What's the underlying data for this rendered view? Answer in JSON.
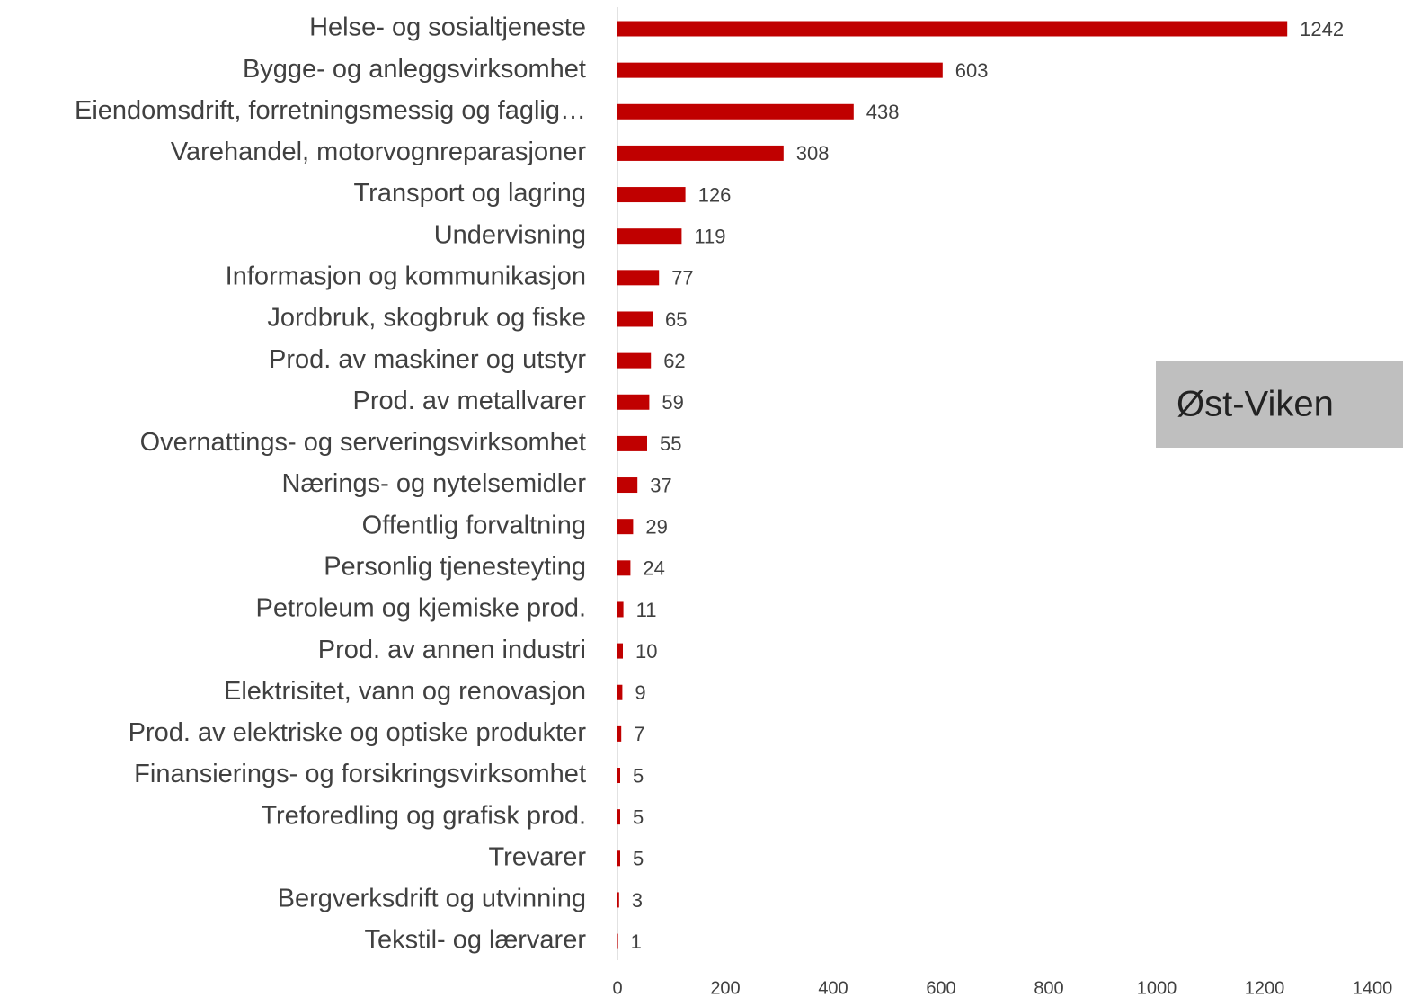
{
  "chart_data": {
    "type": "bar",
    "orientation": "horizontal",
    "categories": [
      "Helse- og sosialtjeneste",
      "Bygge- og anleggsvirksomhet",
      "Eiendomsdrift, forretningsmessig og faglig…",
      "Varehandel, motorvognreparasjoner",
      "Transport og lagring",
      "Undervisning",
      "Informasjon og kommunikasjon",
      "Jordbruk, skogbruk og fiske",
      "Prod. av maskiner og utstyr",
      "Prod. av metallvarer",
      "Overnattings- og serveringsvirksomhet",
      "Nærings- og nytelsemidler",
      "Offentlig forvaltning",
      "Personlig tjenesteyting",
      "Petroleum og kjemiske prod.",
      "Prod. av annen industri",
      "Elektrisitet, vann og renovasjon",
      "Prod. av elektriske og optiske produkter",
      "Finansierings- og forsikringsvirksomhet",
      "Treforedling og grafisk prod.",
      "Trevarer",
      "Bergverksdrift og utvinning",
      "Tekstil- og lærvarer"
    ],
    "values": [
      1242,
      603,
      438,
      308,
      126,
      119,
      77,
      65,
      62,
      59,
      55,
      37,
      29,
      24,
      11,
      10,
      9,
      7,
      5,
      5,
      5,
      3,
      1
    ],
    "color": "#c00000",
    "xlim": [
      0,
      1400
    ],
    "xticks": [
      0,
      200,
      400,
      600,
      800,
      1000,
      1200,
      1400
    ],
    "grid": false,
    "annotation": "Øst-Viken"
  }
}
